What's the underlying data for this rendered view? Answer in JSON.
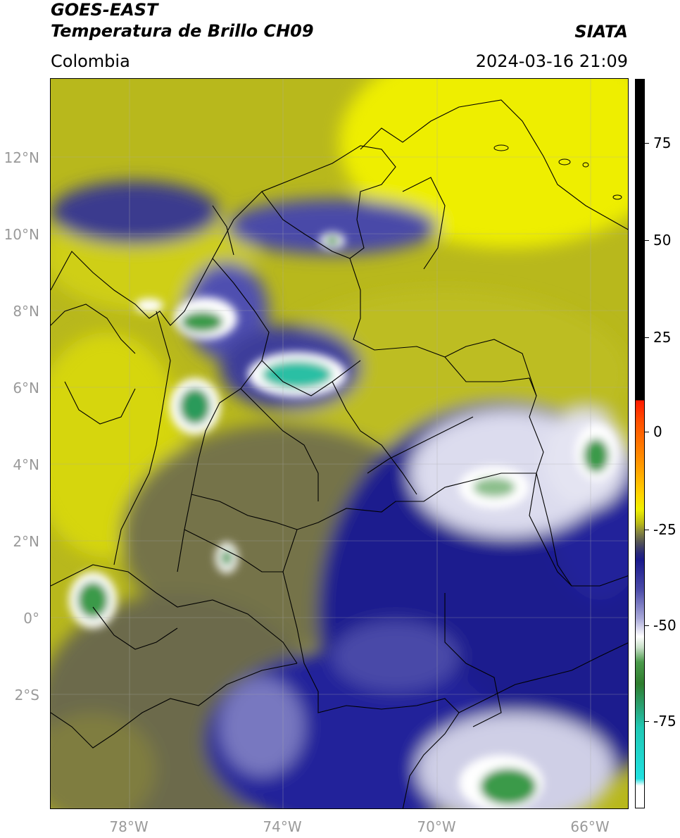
{
  "header": {
    "satellite": "GOES-EAST",
    "product": "Temperatura de Brillo CH09",
    "region": "Colombia",
    "agency": "SIATA",
    "datetime": "2024-03-16 21:09"
  },
  "axes": {
    "lat_labels": [
      "12°N",
      "10°N",
      "8°N",
      "6°N",
      "4°N",
      "2°N",
      "0°",
      "2°S"
    ],
    "lon_labels": [
      "78°W",
      "74°W",
      "70°W",
      "66°W"
    ]
  },
  "colorbar": {
    "tick_labels": [
      "75",
      "50",
      "25",
      "0",
      "-25",
      "-50",
      "-75"
    ],
    "colors": {
      "hot": "#000000",
      "red": "#ff1a00",
      "orange": "#ff9a00",
      "yellow": "#f0f000",
      "olive": "#8c8c3c",
      "gray": "#555555",
      "navy": "#1a1a8c",
      "white": "#ffffff",
      "green": "#2e8b2e",
      "cyan": "#20e0e0"
    }
  },
  "map_colors": {
    "warm_yellow": "#e6e600",
    "olive": "#9c9c2a",
    "dark_olive": "#5e5e48",
    "cold_navy": "#1c1c8e",
    "cloud_white": "#e8e8f4",
    "deep_green": "#3a9a4a",
    "teal": "#2cbfa4",
    "border": "#000000"
  }
}
